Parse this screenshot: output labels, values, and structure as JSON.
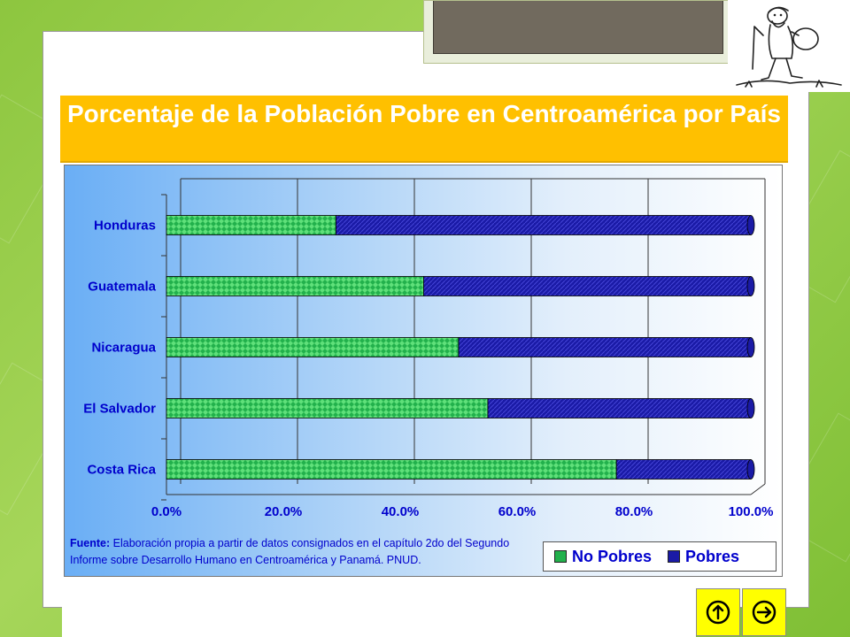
{
  "slide": {
    "title": "Porcentaje de la Población Pobre en Centroamérica por País",
    "source_label": "Fuente:",
    "source_text": "Elaboración propia a partir de datos consignados en el capítulo 2do del Segundo Informe sobre Desarrollo Humano en Centroamérica y Panamá. PNUD."
  },
  "chart_data": {
    "type": "bar",
    "orientation": "horizontal",
    "stacked": true,
    "percent_stacked": true,
    "categories": [
      "Honduras",
      "Guatemala",
      "Nicaragua",
      "El Salvador",
      "Costa Rica"
    ],
    "series": [
      {
        "name": "No Pobres",
        "values": [
          29,
          44,
          50,
          55,
          77
        ],
        "color": "#22b14c"
      },
      {
        "name": "Pobres",
        "values": [
          71,
          56,
          50,
          45,
          23
        ],
        "color": "#1a1aa6"
      }
    ],
    "x_ticks": [
      "0.0%",
      "20.0%",
      "40.0%",
      "60.0%",
      "80.0%",
      "100.0%"
    ],
    "xlim": [
      0,
      100
    ],
    "grid": true,
    "legend_position": "bottom-right"
  },
  "colors": {
    "background": "#8dc63f",
    "banner": "#ffc000",
    "nav_button": "#ffff00",
    "label_text": "#0000cc"
  },
  "nav": {
    "up_icon": "arrow-up-icon",
    "next_icon": "arrow-right-icon"
  }
}
